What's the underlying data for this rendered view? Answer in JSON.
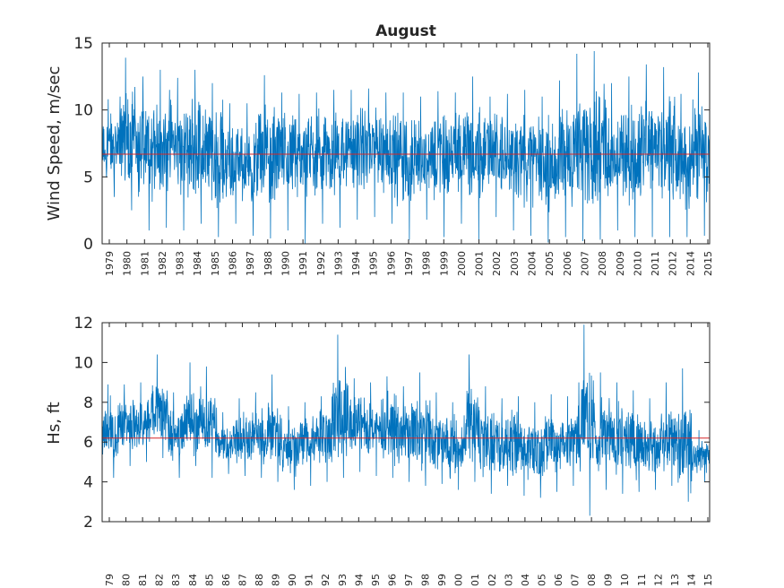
{
  "chart_data": [
    {
      "type": "line",
      "title": "August",
      "xlabel": "",
      "ylabel": "Wind Speed, m/sec",
      "ylim": [
        0,
        15
      ],
      "yticks": [
        0,
        5,
        10,
        15
      ],
      "tick_labels": [
        "1979",
        "1980",
        "1981",
        "1982",
        "1983",
        "1984",
        "1985",
        "1986",
        "1987",
        "1988",
        "1990",
        "1991",
        "1992",
        "1993",
        "1994",
        "1995",
        "1996",
        "1997",
        "1998",
        "1999",
        "2000",
        "2001",
        "2002",
        "2003",
        "2004",
        "2005",
        "2006",
        "2007",
        "2008",
        "2009",
        "2010",
        "2011",
        "2012",
        "2014",
        "2015"
      ],
      "grid": false,
      "series": [
        {
          "color": "#0072BD",
          "summary": "August daily wind speed 1979-2015, fluctuating roughly between 0.5 and 14 m/sec",
          "segments": [
            {
              "year": "1979",
              "mean": 7.0,
              "min": 3.5,
              "max": 10.8
            },
            {
              "year": "1980",
              "mean": 7.4,
              "min": 2.5,
              "max": 13.9
            },
            {
              "year": "1981",
              "mean": 6.6,
              "min": 1.0,
              "max": 12.5
            },
            {
              "year": "1982",
              "mean": 7.8,
              "min": 1.2,
              "max": 13.0
            },
            {
              "year": "1983",
              "mean": 7.2,
              "min": 1.0,
              "max": 12.4
            },
            {
              "year": "1984",
              "mean": 7.0,
              "min": 1.5,
              "max": 13.0
            },
            {
              "year": "1985",
              "mean": 6.8,
              "min": 0.5,
              "max": 12.0
            },
            {
              "year": "1986",
              "mean": 6.0,
              "min": 1.5,
              "max": 10.5
            },
            {
              "year": "1987",
              "mean": 5.8,
              "min": 0.6,
              "max": 10.5
            },
            {
              "year": "1988",
              "mean": 6.2,
              "min": 0.4,
              "max": 12.6
            },
            {
              "year": "1990",
              "mean": 6.8,
              "min": 1.0,
              "max": 11.3
            },
            {
              "year": "1991",
              "mean": 6.8,
              "min": 0.0,
              "max": 11.2
            },
            {
              "year": "1992",
              "mean": 7.0,
              "min": 1.5,
              "max": 11.3
            },
            {
              "year": "1993",
              "mean": 7.0,
              "min": 1.2,
              "max": 11.5
            },
            {
              "year": "1994",
              "mean": 7.1,
              "min": 1.8,
              "max": 11.5
            },
            {
              "year": "1995",
              "mean": 6.9,
              "min": 2.0,
              "max": 11.6
            },
            {
              "year": "1996",
              "mean": 7.0,
              "min": 1.5,
              "max": 11.3
            },
            {
              "year": "1997",
              "mean": 6.4,
              "min": 0.3,
              "max": 11.3
            },
            {
              "year": "1998",
              "mean": 6.7,
              "min": 1.8,
              "max": 11.0
            },
            {
              "year": "1999",
              "mean": 6.8,
              "min": 0.5,
              "max": 11.4
            },
            {
              "year": "2000",
              "mean": 6.9,
              "min": 1.5,
              "max": 11.3
            },
            {
              "year": "2001",
              "mean": 7.0,
              "min": 0.3,
              "max": 12.5
            },
            {
              "year": "2002",
              "mean": 7.1,
              "min": 2.0,
              "max": 11.0
            },
            {
              "year": "2003",
              "mean": 6.8,
              "min": 1.0,
              "max": 11.2
            },
            {
              "year": "2004",
              "mean": 6.5,
              "min": 0.6,
              "max": 11.5
            },
            {
              "year": "2005",
              "mean": 6.0,
              "min": 0.1,
              "max": 11.0
            },
            {
              "year": "2006",
              "mean": 6.3,
              "min": 0.5,
              "max": 12.2
            },
            {
              "year": "2007",
              "mean": 6.8,
              "min": 0.2,
              "max": 14.2
            },
            {
              "year": "2008",
              "mean": 7.5,
              "min": 0.3,
              "max": 14.4
            },
            {
              "year": "2009",
              "mean": 6.9,
              "min": 1.0,
              "max": 12.0
            },
            {
              "year": "2010",
              "mean": 6.5,
              "min": 0.5,
              "max": 12.5
            },
            {
              "year": "2011",
              "mean": 7.0,
              "min": 0.5,
              "max": 13.4
            },
            {
              "year": "2012",
              "mean": 6.8,
              "min": 0.5,
              "max": 13.2
            },
            {
              "year": "2014",
              "mean": 5.8,
              "min": 0.5,
              "max": 11.2
            },
            {
              "year": "2015",
              "mean": 6.0,
              "min": 0.6,
              "max": 12.8
            }
          ]
        },
        {
          "color": "#D62728",
          "type": "hline",
          "y": 6.7
        }
      ]
    },
    {
      "type": "line",
      "title": "",
      "xlabel": "",
      "ylabel": "Hs, ft",
      "ylim": [
        2,
        12
      ],
      "yticks": [
        2,
        4,
        6,
        8,
        10,
        12
      ],
      "tick_labels": [
        "79",
        "80",
        "81",
        "82",
        "83",
        "84",
        "85",
        "86",
        "87",
        "88",
        "89",
        "90",
        "91",
        "92",
        "93",
        "94",
        "95",
        "96",
        "97",
        "98",
        "99",
        "00",
        "01",
        "02",
        "03",
        "04",
        "05",
        "06",
        "07",
        "08",
        "09",
        "10",
        "11",
        "12",
        "13",
        "14",
        "15"
      ],
      "grid": false,
      "series": [
        {
          "color": "#0072BD",
          "summary": "August significant wave height, fluctuating roughly between 2.3 and 11.9 ft",
          "segments": [
            {
              "year": "79",
              "mean": 6.4,
              "min": 4.2,
              "max": 8.9
            },
            {
              "year": "80",
              "mean": 7.0,
              "min": 4.8,
              "max": 8.9
            },
            {
              "year": "81",
              "mean": 6.6,
              "min": 5.0,
              "max": 9.0
            },
            {
              "year": "82",
              "mean": 7.2,
              "min": 5.2,
              "max": 10.4
            },
            {
              "year": "83",
              "mean": 6.4,
              "min": 4.2,
              "max": 8.5
            },
            {
              "year": "84",
              "mean": 6.6,
              "min": 4.8,
              "max": 10.0
            },
            {
              "year": "85",
              "mean": 6.8,
              "min": 4.2,
              "max": 9.8
            },
            {
              "year": "86",
              "mean": 5.6,
              "min": 4.4,
              "max": 7.5
            },
            {
              "year": "87",
              "mean": 6.2,
              "min": 4.3,
              "max": 8.2
            },
            {
              "year": "88",
              "mean": 6.0,
              "min": 4.2,
              "max": 8.5
            },
            {
              "year": "89",
              "mean": 6.0,
              "min": 4.0,
              "max": 9.4
            },
            {
              "year": "90",
              "mean": 5.4,
              "min": 3.6,
              "max": 7.8
            },
            {
              "year": "91",
              "mean": 6.2,
              "min": 3.8,
              "max": 8.0
            },
            {
              "year": "92",
              "mean": 6.4,
              "min": 4.0,
              "max": 8.3
            },
            {
              "year": "93",
              "mean": 6.8,
              "min": 4.2,
              "max": 11.4
            },
            {
              "year": "94",
              "mean": 7.0,
              "min": 4.5,
              "max": 9.2
            },
            {
              "year": "95",
              "mean": 6.8,
              "min": 4.3,
              "max": 9.0
            },
            {
              "year": "96",
              "mean": 6.6,
              "min": 4.2,
              "max": 9.3
            },
            {
              "year": "97",
              "mean": 6.3,
              "min": 4.0,
              "max": 8.8
            },
            {
              "year": "98",
              "mean": 6.0,
              "min": 3.8,
              "max": 9.5
            },
            {
              "year": "99",
              "mean": 5.8,
              "min": 3.9,
              "max": 8.5
            },
            {
              "year": "00",
              "mean": 5.4,
              "min": 3.6,
              "max": 8.0
            },
            {
              "year": "01",
              "mean": 6.4,
              "min": 4.0,
              "max": 10.4
            },
            {
              "year": "02",
              "mean": 5.6,
              "min": 3.4,
              "max": 8.8
            },
            {
              "year": "03",
              "mean": 5.8,
              "min": 3.8,
              "max": 8.2
            },
            {
              "year": "04",
              "mean": 5.6,
              "min": 3.3,
              "max": 8.3
            },
            {
              "year": "05",
              "mean": 5.4,
              "min": 3.2,
              "max": 8.0
            },
            {
              "year": "06",
              "mean": 5.8,
              "min": 3.5,
              "max": 8.4
            },
            {
              "year": "07",
              "mean": 6.0,
              "min": 3.8,
              "max": 8.3
            },
            {
              "year": "08",
              "mean": 6.6,
              "min": 2.3,
              "max": 11.9
            },
            {
              "year": "09",
              "mean": 6.0,
              "min": 3.6,
              "max": 9.5
            },
            {
              "year": "10",
              "mean": 5.8,
              "min": 3.4,
              "max": 9.0
            },
            {
              "year": "11",
              "mean": 5.8,
              "min": 3.5,
              "max": 8.6
            },
            {
              "year": "12",
              "mean": 5.6,
              "min": 3.6,
              "max": 8.2
            },
            {
              "year": "13",
              "mean": 5.8,
              "min": 3.8,
              "max": 9.0
            },
            {
              "year": "14",
              "mean": 5.2,
              "min": 3.0,
              "max": 9.7
            },
            {
              "year": "15",
              "mean": 5.0,
              "min": 4.0,
              "max": 6.6
            }
          ]
        },
        {
          "color": "#D62728",
          "type": "hline",
          "y": 6.2
        }
      ]
    }
  ]
}
